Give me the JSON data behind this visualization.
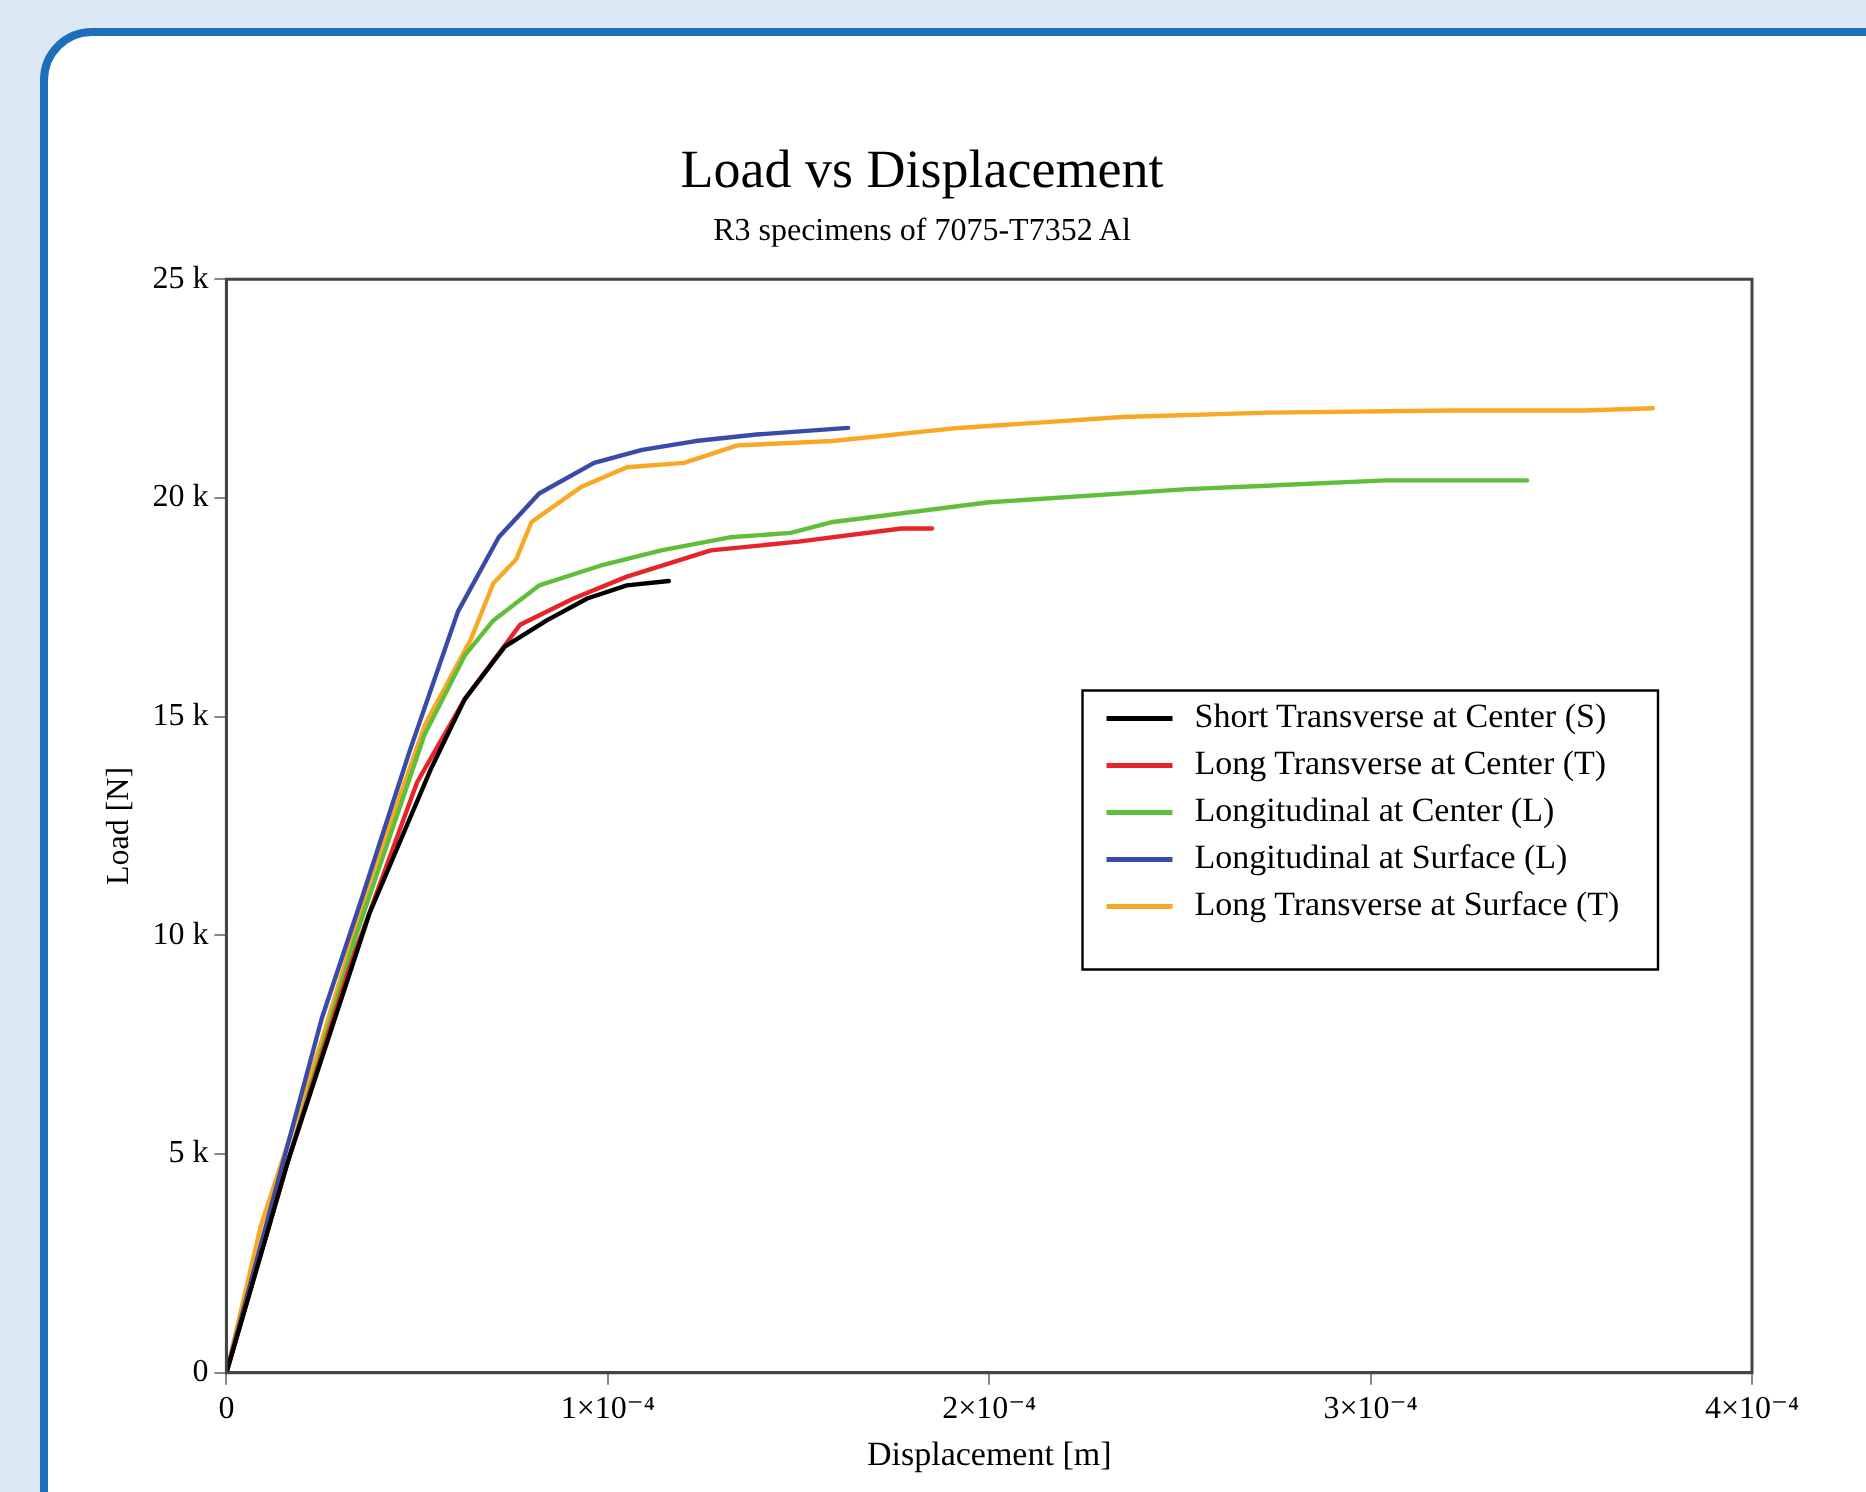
{
  "chart_data": {
    "type": "line",
    "title": "Load vs Displacement",
    "subtitle": "R3 specimens of 7075-T7352 Al",
    "xlabel": "Displacement [m]",
    "ylabel": "Load [N]",
    "xlim": [
      0,
      0.0004
    ],
    "xticks": [
      0,
      {
        "value": 0.0001,
        "label": "1×10⁻⁴"
      },
      {
        "value": 0.0002,
        "label": "2×10⁻⁴"
      },
      {
        "value": 0.0003,
        "label": "3×10⁻⁴"
      },
      {
        "value": 0.0004,
        "label": "4×10⁻⁴"
      }
    ],
    "ylim": [
      0,
      25000
    ],
    "yticks": [
      0,
      {
        "value": 5000,
        "label": "5 k"
      },
      {
        "value": 10000,
        "label": "10 k"
      },
      {
        "value": 15000,
        "label": "15 k"
      },
      {
        "value": 20000,
        "label": "20 k"
      },
      {
        "value": 25000,
        "label": "25 k"
      }
    ],
    "grid": false,
    "legend": "right",
    "marker": "none",
    "line_style": "solid",
    "series": [
      {
        "name": "Short Transverse at Center (S)",
        "color": "#000000",
        "x": [
          0,
          1.6e-05,
          3.75e-05,
          5.36e-05,
          6.25e-05,
          7.3e-05,
          8.4e-05,
          9.46e-05,
          0.000105,
          0.000116
        ],
        "values": [
          0,
          4800,
          10500,
          13800,
          15400,
          16600,
          17200,
          17700,
          18000,
          18100
        ]
      },
      {
        "name": "Long Transverse at Center (T)",
        "color": "#e8232a",
        "x": [
          0,
          1.6e-05,
          3.2e-05,
          5e-05,
          6.25e-05,
          7.7e-05,
          9.1e-05,
          0.000105,
          0.000127,
          0.00015,
          0.000177,
          0.000185
        ],
        "values": [
          0,
          4800,
          9200,
          13500,
          15400,
          17100,
          17700,
          18200,
          18800,
          19000,
          19300,
          19300
        ]
      },
      {
        "name": "Longitudinal at Center (L)",
        "color": "#5fbf3a",
        "x": [
          0,
          1.6e-05,
          3.4e-05,
          5.2e-05,
          6.25e-05,
          7e-05,
          8.2e-05,
          9.8e-05,
          0.000114,
          0.000132,
          0.000148,
          0.000159,
          0.0002,
          0.000252,
          0.000304,
          0.000341
        ],
        "values": [
          0,
          4800,
          10000,
          14600,
          16400,
          17200,
          18000,
          18450,
          18800,
          19100,
          19200,
          19450,
          19900,
          20200,
          20400,
          20400
        ]
      },
      {
        "name": "Longitudinal at Surface (L)",
        "color": "#3a4aa8",
        "x": [
          0,
          2.5e-05,
          3.57e-05,
          4.8e-05,
          6.07e-05,
          7.14e-05,
          8.2e-05,
          9.64e-05,
          0.000109,
          0.000123,
          0.000139,
          0.000163
        ],
        "values": [
          0,
          8100,
          10900,
          14200,
          17400,
          19100,
          20100,
          20800,
          21100,
          21300,
          21450,
          21600
        ]
      },
      {
        "name": "Long Transverse at Surface (T)",
        "color": "#f9a825",
        "x": [
          0,
          9e-06,
          2.5e-05,
          3.75e-05,
          5.2e-05,
          6.4e-05,
          7e-05,
          7.6e-05,
          8e-05,
          9.3e-05,
          0.000105,
          0.00012,
          0.000134,
          0.000159,
          0.000192,
          0.000235,
          0.000273,
          0.000321,
          0.000356,
          0.000374
        ],
        "values": [
          0,
          3350,
          7600,
          11200,
          14800,
          16750,
          18050,
          18600,
          19450,
          20250,
          20700,
          20800,
          21200,
          21300,
          21600,
          21850,
          21950,
          22000,
          22000,
          22050
        ]
      }
    ]
  }
}
